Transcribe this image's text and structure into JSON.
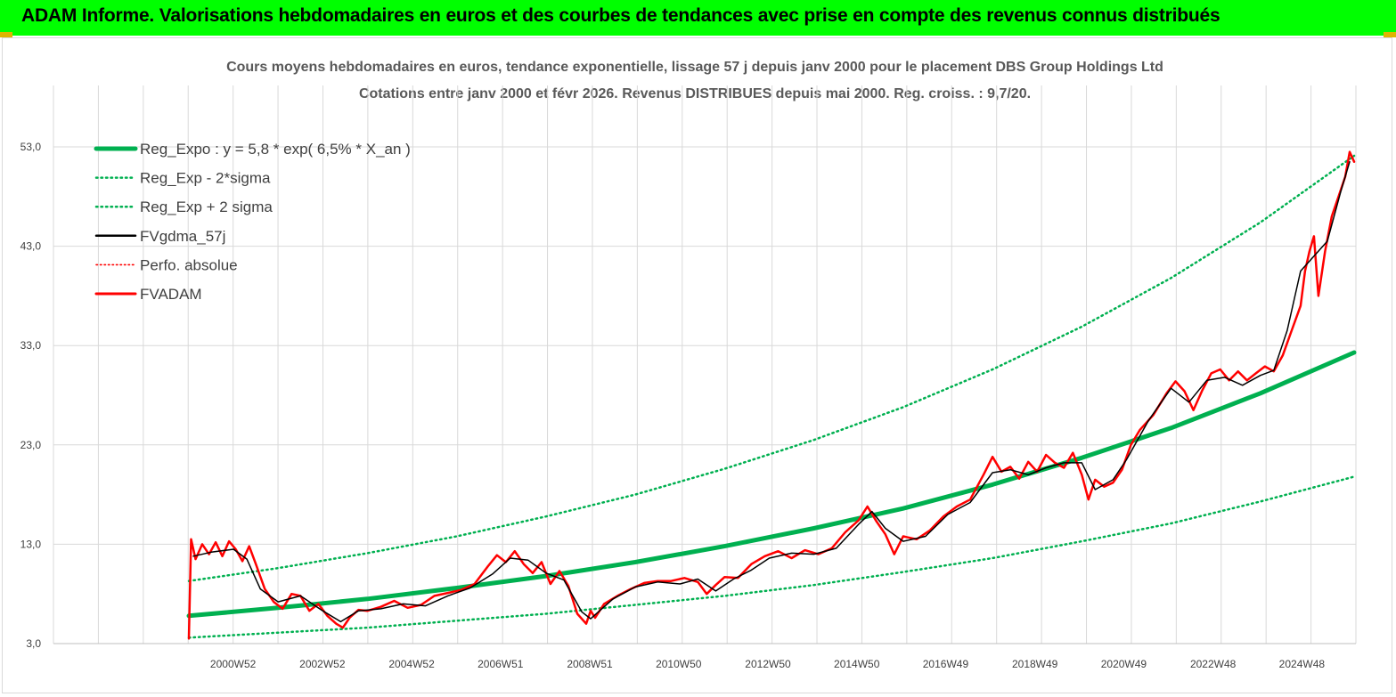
{
  "banner": {
    "title": "ADAM Informe. Valorisations hebdomadaires en euros et des courbes de tendances avec prise en compte des revenus connus distribués"
  },
  "colors": {
    "banner_bg": "#00ff00",
    "reg": "#00b050",
    "adam": "#ff0000",
    "fv": "#000000",
    "grid": "#d9d9d9"
  },
  "chart_data": {
    "type": "line",
    "title": "Cours moyens hebdomadaires en euros, tendance exponentielle, lissage 57 j depuis janv 2000 pour le placement DBS Group Holdings Ltd",
    "subtitle": "Cotations entre janv 2000 et févr 2026. Revenus DISTRIBUES depuis mai 2000. Reg. croiss. : 9,7/20.",
    "xlabel": "",
    "ylabel": "",
    "ylim": [
      3,
      58
    ],
    "xlim": [
      2000.0,
      2026.1
    ],
    "yticks": [
      "53,0",
      "43,0",
      "33,0",
      "23,0",
      "13,0",
      "3,0"
    ],
    "ytick_values": [
      53,
      43,
      33,
      23,
      13,
      3
    ],
    "xticks": [
      "2000W52",
      "2002W52",
      "2004W52",
      "2006W51",
      "2008W51",
      "2010W50",
      "2012W50",
      "2014W50",
      "2016W49",
      "2018W49",
      "2020W49",
      "2022W48",
      "2024W48"
    ],
    "xtick_values": [
      2000.99,
      2002.99,
      2004.99,
      2006.98,
      2008.98,
      2010.97,
      2012.97,
      2014.96,
      2016.95,
      2018.95,
      2020.94,
      2022.94,
      2024.93
    ],
    "grid": true,
    "legend_position": "top-left",
    "legend": [
      "Reg_Expo : y = 5,8 * exp( 6,5% *  X_an )",
      "Reg_Exp - 2*sigma",
      "Reg_Exp + 2 sigma",
      "FVgdma_57j",
      "Perfo. absolue",
      "FVADAM"
    ],
    "series": [
      {
        "name": "Reg_Expo : y = 5,8 * exp( 6,5% *  X_an )",
        "style": "solid-thick",
        "color": "#00b050",
        "x": [
          2000.0,
          2002,
          2004,
          2006,
          2008,
          2010,
          2012,
          2014,
          2016,
          2018,
          2020,
          2022,
          2024,
          2026.1
        ],
        "y": [
          5.8,
          6.6,
          7.5,
          8.6,
          9.8,
          11.2,
          12.8,
          14.6,
          16.6,
          19.0,
          21.7,
          24.7,
          28.2,
          32.3
        ]
      },
      {
        "name": "Reg_Exp - 2*sigma",
        "style": "dotted",
        "color": "#00b050",
        "x": [
          2000.0,
          2002,
          2004,
          2006,
          2008,
          2010,
          2012,
          2014,
          2016,
          2018,
          2020,
          2022,
          2024,
          2026.1
        ],
        "y": [
          3.6,
          4.1,
          4.6,
          5.3,
          6.0,
          6.9,
          7.8,
          8.9,
          10.2,
          11.6,
          13.3,
          15.1,
          17.3,
          19.8
        ]
      },
      {
        "name": "Reg_Exp + 2 sigma",
        "style": "dotted",
        "color": "#00b050",
        "x": [
          2000.0,
          2002,
          2004,
          2006,
          2008,
          2010,
          2012,
          2014,
          2016,
          2018,
          2020,
          2022,
          2024,
          2026.1
        ],
        "y": [
          9.3,
          10.6,
          12.1,
          13.8,
          15.8,
          18.0,
          20.6,
          23.5,
          26.8,
          30.6,
          34.9,
          39.8,
          45.4,
          52.1
        ]
      },
      {
        "name": "FVgdma_57j",
        "style": "solid",
        "color": "#000000",
        "x": [
          2000.1,
          2000.5,
          2001.0,
          2001.3,
          2001.6,
          2002.0,
          2002.5,
          2003.0,
          2003.4,
          2003.8,
          2004.3,
          2004.8,
          2005.3,
          2005.8,
          2006.3,
          2006.8,
          2007.2,
          2007.6,
          2008.0,
          2008.4,
          2008.8,
          2009.0,
          2009.5,
          2010.0,
          2010.5,
          2011.0,
          2011.4,
          2011.8,
          2012.2,
          2012.6,
          2013.0,
          2013.5,
          2014.0,
          2014.5,
          2015.0,
          2015.3,
          2015.6,
          2016.0,
          2016.5,
          2017.0,
          2017.5,
          2018.0,
          2018.4,
          2018.8,
          2019.2,
          2019.6,
          2020.0,
          2020.3,
          2020.7,
          2021.0,
          2021.5,
          2022.0,
          2022.4,
          2022.8,
          2023.2,
          2023.6,
          2024.0,
          2024.3,
          2024.6,
          2024.9,
          2025.2,
          2025.5,
          2025.8,
          2026.0
        ],
        "y": [
          11.8,
          12.2,
          12.5,
          11.5,
          8.5,
          7.2,
          7.8,
          6.3,
          5.2,
          6.3,
          6.5,
          7.0,
          6.8,
          7.8,
          8.6,
          10.0,
          11.6,
          11.4,
          10.1,
          9.4,
          6.2,
          5.5,
          7.5,
          8.7,
          9.2,
          9.0,
          9.5,
          8.3,
          9.5,
          10.4,
          11.6,
          12.1,
          12.0,
          12.6,
          15.0,
          16.3,
          14.6,
          13.3,
          13.8,
          16.0,
          17.2,
          20.2,
          20.5,
          20.0,
          20.7,
          21.2,
          21.2,
          18.5,
          19.5,
          21.5,
          25.5,
          28.7,
          27.3,
          29.5,
          29.8,
          29.0,
          30.0,
          30.5,
          34.5,
          40.5,
          42.0,
          43.5,
          48.5,
          51.5
        ]
      },
      {
        "name": "Perfo. absolue",
        "style": "dotted",
        "color": "#ff0000",
        "x": [],
        "y": []
      },
      {
        "name": "FVADAM",
        "style": "solid-thick",
        "color": "#ff0000",
        "x": [
          2000.0,
          2000.05,
          2000.15,
          2000.3,
          2000.45,
          2000.6,
          2000.75,
          2000.9,
          2001.05,
          2001.2,
          2001.35,
          2001.5,
          2001.7,
          2001.9,
          2002.1,
          2002.3,
          2002.5,
          2002.7,
          2002.9,
          2003.1,
          2003.3,
          2003.45,
          2003.6,
          2003.8,
          2004.0,
          2004.3,
          2004.6,
          2004.9,
          2005.2,
          2005.5,
          2005.8,
          2006.1,
          2006.4,
          2006.7,
          2006.9,
          2007.1,
          2007.3,
          2007.5,
          2007.7,
          2007.9,
          2008.1,
          2008.3,
          2008.5,
          2008.7,
          2008.9,
          2009.0,
          2009.1,
          2009.3,
          2009.6,
          2009.9,
          2010.2,
          2010.5,
          2010.8,
          2011.1,
          2011.4,
          2011.6,
          2011.8,
          2012.0,
          2012.3,
          2012.6,
          2012.9,
          2013.2,
          2013.5,
          2013.8,
          2014.1,
          2014.4,
          2014.7,
          2015.0,
          2015.2,
          2015.4,
          2015.6,
          2015.8,
          2016.0,
          2016.3,
          2016.6,
          2016.9,
          2017.2,
          2017.5,
          2017.8,
          2018.0,
          2018.2,
          2018.4,
          2018.6,
          2018.8,
          2019.0,
          2019.2,
          2019.4,
          2019.6,
          2019.8,
          2020.0,
          2020.15,
          2020.3,
          2020.5,
          2020.7,
          2020.9,
          2021.1,
          2021.3,
          2021.6,
          2021.9,
          2022.1,
          2022.3,
          2022.5,
          2022.7,
          2022.9,
          2023.1,
          2023.3,
          2023.5,
          2023.7,
          2023.9,
          2024.1,
          2024.3,
          2024.5,
          2024.7,
          2024.9,
          2025.0,
          2025.1,
          2025.2,
          2025.3,
          2025.45,
          2025.6,
          2025.75,
          2025.9,
          2026.0,
          2026.1
        ],
        "y": [
          3.5,
          13.5,
          11.5,
          13.0,
          12.0,
          13.2,
          11.8,
          13.3,
          12.5,
          11.3,
          12.8,
          11.0,
          8.5,
          7.2,
          6.5,
          8.0,
          7.8,
          6.3,
          7.0,
          5.8,
          5.0,
          4.6,
          5.6,
          6.4,
          6.3,
          6.7,
          7.3,
          6.6,
          6.9,
          7.8,
          8.1,
          8.4,
          9.0,
          10.8,
          11.9,
          11.2,
          12.3,
          11.0,
          10.1,
          11.2,
          9.0,
          10.3,
          8.8,
          6.0,
          5.0,
          6.3,
          5.6,
          7.0,
          7.8,
          8.5,
          9.1,
          9.3,
          9.3,
          9.6,
          9.2,
          8.0,
          8.9,
          9.7,
          9.6,
          11.0,
          11.8,
          12.3,
          11.6,
          12.4,
          12.0,
          12.6,
          14.2,
          15.4,
          16.8,
          15.3,
          14.0,
          12.0,
          13.8,
          13.5,
          14.4,
          15.8,
          16.8,
          17.5,
          20.0,
          21.8,
          20.3,
          20.8,
          19.6,
          21.3,
          20.3,
          22.0,
          21.2,
          20.7,
          22.2,
          20.0,
          17.5,
          19.5,
          18.8,
          19.2,
          20.5,
          23.0,
          24.5,
          26.0,
          28.2,
          29.4,
          28.4,
          26.5,
          28.5,
          30.2,
          30.6,
          29.5,
          30.4,
          29.5,
          30.2,
          30.9,
          30.4,
          32.0,
          34.5,
          37.0,
          40.5,
          42.5,
          44.0,
          38.0,
          42.5,
          46.0,
          48.0,
          50.0,
          52.5,
          51.5
        ]
      }
    ]
  }
}
